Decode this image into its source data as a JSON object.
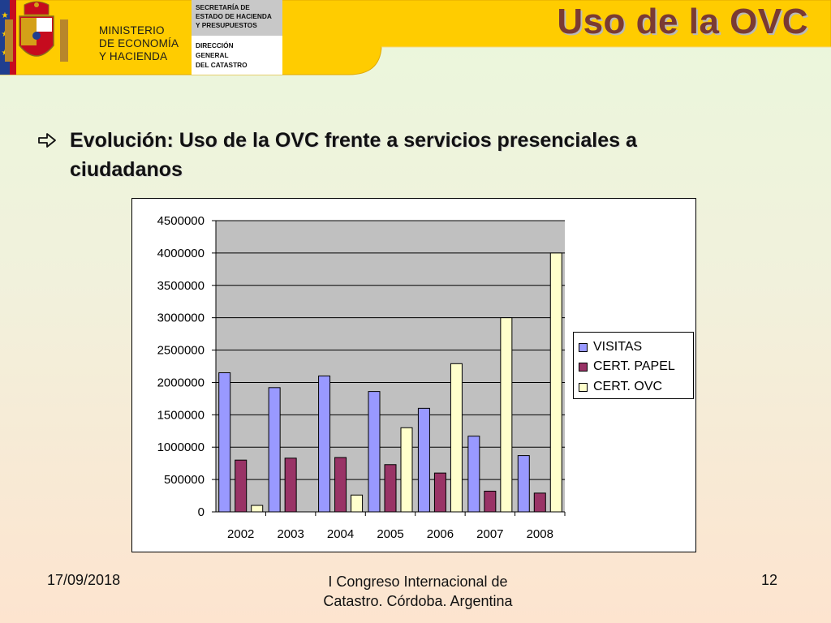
{
  "header": {
    "ministry_lines": [
      "MINISTERIO",
      "DE ECONOMÍA",
      "Y HACIENDA"
    ],
    "secretaria_lines": [
      "SECRETARÍA DE",
      "ESTADO DE HACIENDA",
      "Y PRESUPUESTOS"
    ],
    "direccion_lines": [
      "DIRECCIÓN",
      "GENERAL",
      "DEL CATASTRO"
    ],
    "title": "Uso de la OVC",
    "band_color": "#ffcc00"
  },
  "bullet": {
    "icon": "hollow-arrow-right-icon",
    "text": "Evolución: Uso de la OVC frente a servicios presenciales a ciudadanos"
  },
  "chart_data": {
    "type": "bar",
    "categories": [
      "2002",
      "2003",
      "2004",
      "2005",
      "2006",
      "2007",
      "2008"
    ],
    "series": [
      {
        "name": "VISITAS",
        "color": "#9999ff",
        "values": [
          2150000,
          1920000,
          2100000,
          1860000,
          1600000,
          1170000,
          870000
        ]
      },
      {
        "name": "CERT. PAPEL",
        "color": "#993366",
        "values": [
          800000,
          830000,
          840000,
          730000,
          600000,
          320000,
          290000
        ]
      },
      {
        "name": "CERT. OVC",
        "color": "#ffffcc",
        "values": [
          100000,
          0,
          260000,
          1300000,
          2290000,
          3000000,
          4000000
        ]
      }
    ],
    "ylim": [
      0,
      4500000
    ],
    "yticks": [
      "0",
      "500000",
      "1000000",
      "1500000",
      "2000000",
      "2500000",
      "3000000",
      "3500000",
      "4000000",
      "4500000"
    ],
    "grid": true,
    "plot_background": "#c0c0c0",
    "legend_position": "right"
  },
  "footer": {
    "date": "17/09/2018",
    "center_line1": "I Congreso Internacional de",
    "center_line2": "Catastro. Córdoba. Argentina",
    "page_number": "12"
  }
}
